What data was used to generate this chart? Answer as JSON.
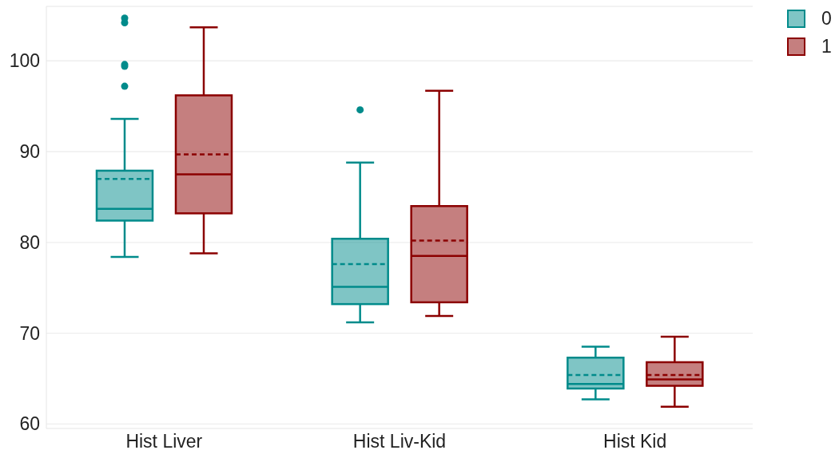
{
  "chart_data": {
    "type": "box",
    "categories": [
      "Hist Liver",
      "Hist Liv-Kid",
      "Hist Kid"
    ],
    "series": [
      {
        "name": "0",
        "color": "#008b8b",
        "boxes": [
          {
            "low": 78.4,
            "q1": 82.4,
            "median": 83.7,
            "q3": 87.9,
            "high": 93.6,
            "mean": 87.0,
            "outliers": [
              97.2,
              99.4,
              99.6,
              104.2,
              104.7
            ]
          },
          {
            "low": 71.2,
            "q1": 73.2,
            "median": 75.1,
            "q3": 80.4,
            "high": 88.8,
            "mean": 77.6,
            "outliers": [
              94.6
            ]
          },
          {
            "low": 62.7,
            "q1": 63.9,
            "median": 64.4,
            "q3": 67.3,
            "high": 68.5,
            "mean": 65.4
          }
        ]
      },
      {
        "name": "1",
        "color": "#8b0000",
        "boxes": [
          {
            "low": 78.8,
            "q1": 83.2,
            "median": 87.5,
            "q3": 96.2,
            "high": 103.7,
            "mean": 89.7
          },
          {
            "low": 71.9,
            "q1": 73.4,
            "median": 78.5,
            "q3": 84.0,
            "high": 96.7,
            "mean": 80.2
          },
          {
            "low": 61.9,
            "q1": 64.2,
            "median": 64.9,
            "q3": 66.8,
            "high": 69.6,
            "mean": 65.4
          }
        ]
      }
    ],
    "ylim": [
      59.5,
      106
    ],
    "yticks": [
      60,
      70,
      80,
      90,
      100
    ],
    "grid": "y",
    "legend": "top right"
  }
}
